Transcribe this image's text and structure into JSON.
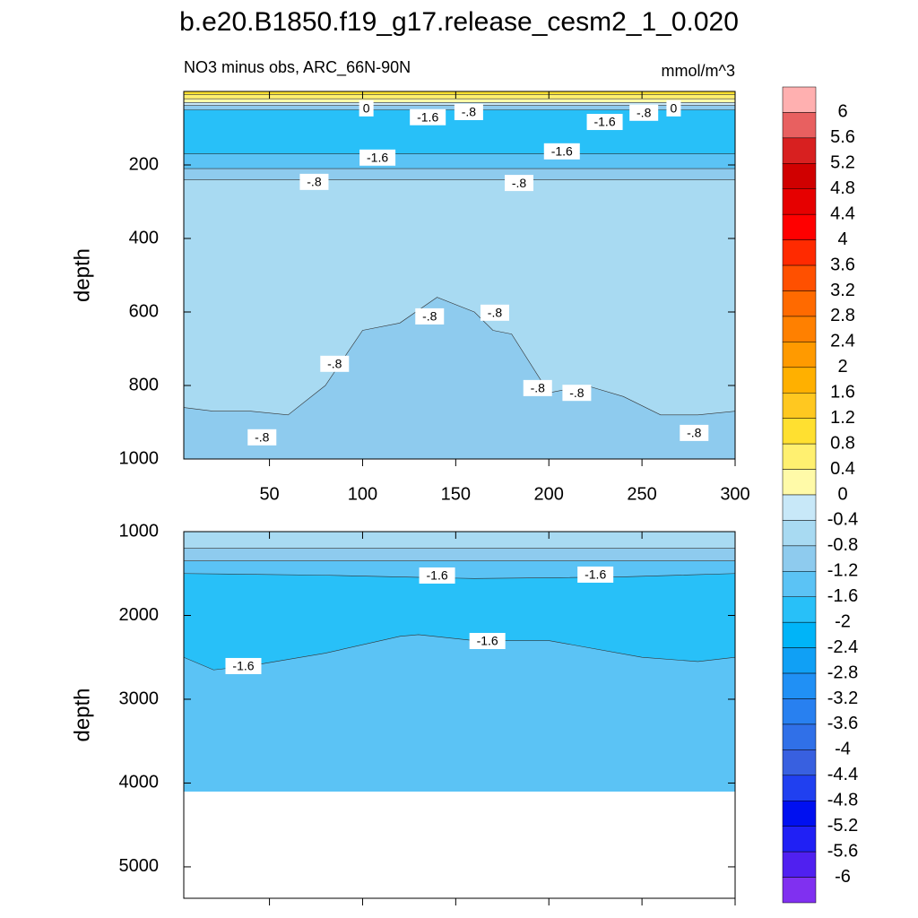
{
  "chart_data": {
    "type": "contour",
    "title": "b.e20.B1850.f19_g17.release_cesm2_1_0.020",
    "colorbar": {
      "levels": [
        6,
        5.6,
        5.2,
        4.8,
        4.4,
        4,
        3.6,
        3.2,
        2.8,
        2.4,
        2,
        1.6,
        1.2,
        0.8,
        0.4,
        0,
        -0.4,
        -0.8,
        -1.2,
        -1.6,
        -2,
        -2.4,
        -2.8,
        -3.2,
        -3.6,
        -4,
        -4.4,
        -4.8,
        -5.2,
        -5.6,
        -6
      ],
      "colors": [
        "#ffb0b0",
        "#e86060",
        "#d82020",
        "#d00000",
        "#e60000",
        "#ff0000",
        "#ff2a00",
        "#ff5000",
        "#ff6a00",
        "#ff8000",
        "#ff9a00",
        "#ffb000",
        "#ffc820",
        "#ffe030",
        "#fff070",
        "#fffaa8",
        "#c8e8f8",
        "#a8daf2",
        "#8ecbee",
        "#5bc3f5",
        "#28c0f8",
        "#00b4f8",
        "#10a0f5",
        "#2090f5",
        "#2880f0",
        "#3070e8",
        "#3860e0",
        "#2040f0",
        "#0010f0",
        "#2020f5",
        "#5020f0",
        "#8030f0"
      ]
    },
    "panels": [
      {
        "subtitle_left": "NO3 minus obs, ARC_66N-90N",
        "subtitle_right": "mmol/m^3",
        "ylabel": "depth",
        "xlim": [
          4,
          300
        ],
        "ylim": [
          0,
          1000
        ],
        "xticks": [
          50,
          100,
          150,
          200,
          250,
          300
        ],
        "yticks": [
          200,
          400,
          600,
          800,
          1000
        ],
        "xticklabels": true,
        "layers": [
          {
            "color": "#ffe030",
            "x": [
              4,
              300
            ],
            "depths": [
              0,
              0
            ]
          },
          {
            "color": "#fff070",
            "x": [
              4,
              300
            ],
            "depths": [
              8,
              8
            ]
          },
          {
            "color": "#fffaa8",
            "x": [
              4,
              300
            ],
            "depths": [
              20,
              20
            ]
          },
          {
            "color": "#c8e8f8",
            "x": [
              4,
              300
            ],
            "depths": [
              30,
              30
            ]
          },
          {
            "color": "#8ecbee",
            "x": [
              4,
              300
            ],
            "depths": [
              38,
              38
            ]
          },
          {
            "color": "#28c0f8",
            "x": [
              4,
              300
            ],
            "depths": [
              50,
              50
            ]
          },
          {
            "color": "#5bc3f5",
            "x": [
              4,
              300
            ],
            "depths": [
              170,
              170
            ]
          },
          {
            "color": "#8ecbee",
            "x": [
              4,
              300
            ],
            "depths": [
              210,
              210
            ]
          },
          {
            "color": "#a8daf2",
            "x": [
              4,
              300
            ],
            "depths": [
              240,
              240
            ]
          },
          {
            "color": "#8ecbee",
            "x": [
              4,
              20,
              40,
              60,
              80,
              100,
              120,
              140,
              160,
              170,
              180,
              200,
              220,
              240,
              260,
              280,
              300
            ],
            "depths": [
              860,
              870,
              870,
              880,
              800,
              650,
              630,
              560,
              600,
              650,
              660,
              820,
              800,
              830,
              880,
              880,
              870
            ]
          }
        ],
        "contour_labels": [
          {
            "text": "0",
            "x": 102,
            "depth": 46
          },
          {
            "text": "-1.6",
            "x": 135,
            "depth": 70
          },
          {
            "text": "-.8",
            "x": 157,
            "depth": 56
          },
          {
            "text": "-1.6",
            "x": 230,
            "depth": 83
          },
          {
            "text": "-.8",
            "x": 251,
            "depth": 58
          },
          {
            "text": "0",
            "x": 267,
            "depth": 46
          },
          {
            "text": "-1.6",
            "x": 108,
            "depth": 180
          },
          {
            "text": "-1.6",
            "x": 207,
            "depth": 163
          },
          {
            "text": "-.8",
            "x": 74,
            "depth": 246
          },
          {
            "text": "-.8",
            "x": 184,
            "depth": 249
          },
          {
            "text": "-.8",
            "x": 136,
            "depth": 612
          },
          {
            "text": "-.8",
            "x": 171,
            "depth": 602
          },
          {
            "text": "-.8",
            "x": 85,
            "depth": 741
          },
          {
            "text": "-.8",
            "x": 194,
            "depth": 807
          },
          {
            "text": "-.8",
            "x": 215,
            "depth": 820
          },
          {
            "text": "-.8",
            "x": 46,
            "depth": 941
          },
          {
            "text": "-.8",
            "x": 278,
            "depth": 929
          }
        ]
      },
      {
        "ylabel": "depth",
        "xlim": [
          4,
          300
        ],
        "ylim": [
          1000,
          5375
        ],
        "xticks": [
          50,
          100,
          150,
          200,
          250,
          300
        ],
        "yticks": [
          1000,
          2000,
          3000,
          4000,
          5000
        ],
        "xticklabels": false,
        "data_bottom": 4100,
        "layers": [
          {
            "color": "#a8daf2",
            "x": [
              4,
              300
            ],
            "depths": [
              1000,
              1000
            ]
          },
          {
            "color": "#8ecbee",
            "x": [
              4,
              300
            ],
            "depths": [
              1200,
              1200
            ]
          },
          {
            "color": "#5bc3f5",
            "x": [
              4,
              300
            ],
            "depths": [
              1350,
              1350
            ]
          },
          {
            "color": "#28c0f8",
            "x": [
              4,
              80,
              160,
              240,
              300
            ],
            "depths": [
              1500,
              1520,
              1560,
              1540,
              1500
            ]
          },
          {
            "color": "#5bc3f5",
            "x": [
              4,
              20,
              40,
              80,
              120,
              130,
              160,
              200,
              250,
              280,
              300
            ],
            "depths": [
              2500,
              2650,
              2600,
              2450,
              2250,
              2230,
              2300,
              2300,
              2500,
              2550,
              2500
            ]
          }
        ],
        "contour_labels": [
          {
            "text": "-1.6",
            "x": 140,
            "depth": 1524
          },
          {
            "text": "-1.6",
            "x": 225,
            "depth": 1513
          },
          {
            "text": "-1.6",
            "x": 167,
            "depth": 2305
          },
          {
            "text": "-1.6",
            "x": 36,
            "depth": 2604
          }
        ]
      }
    ]
  }
}
